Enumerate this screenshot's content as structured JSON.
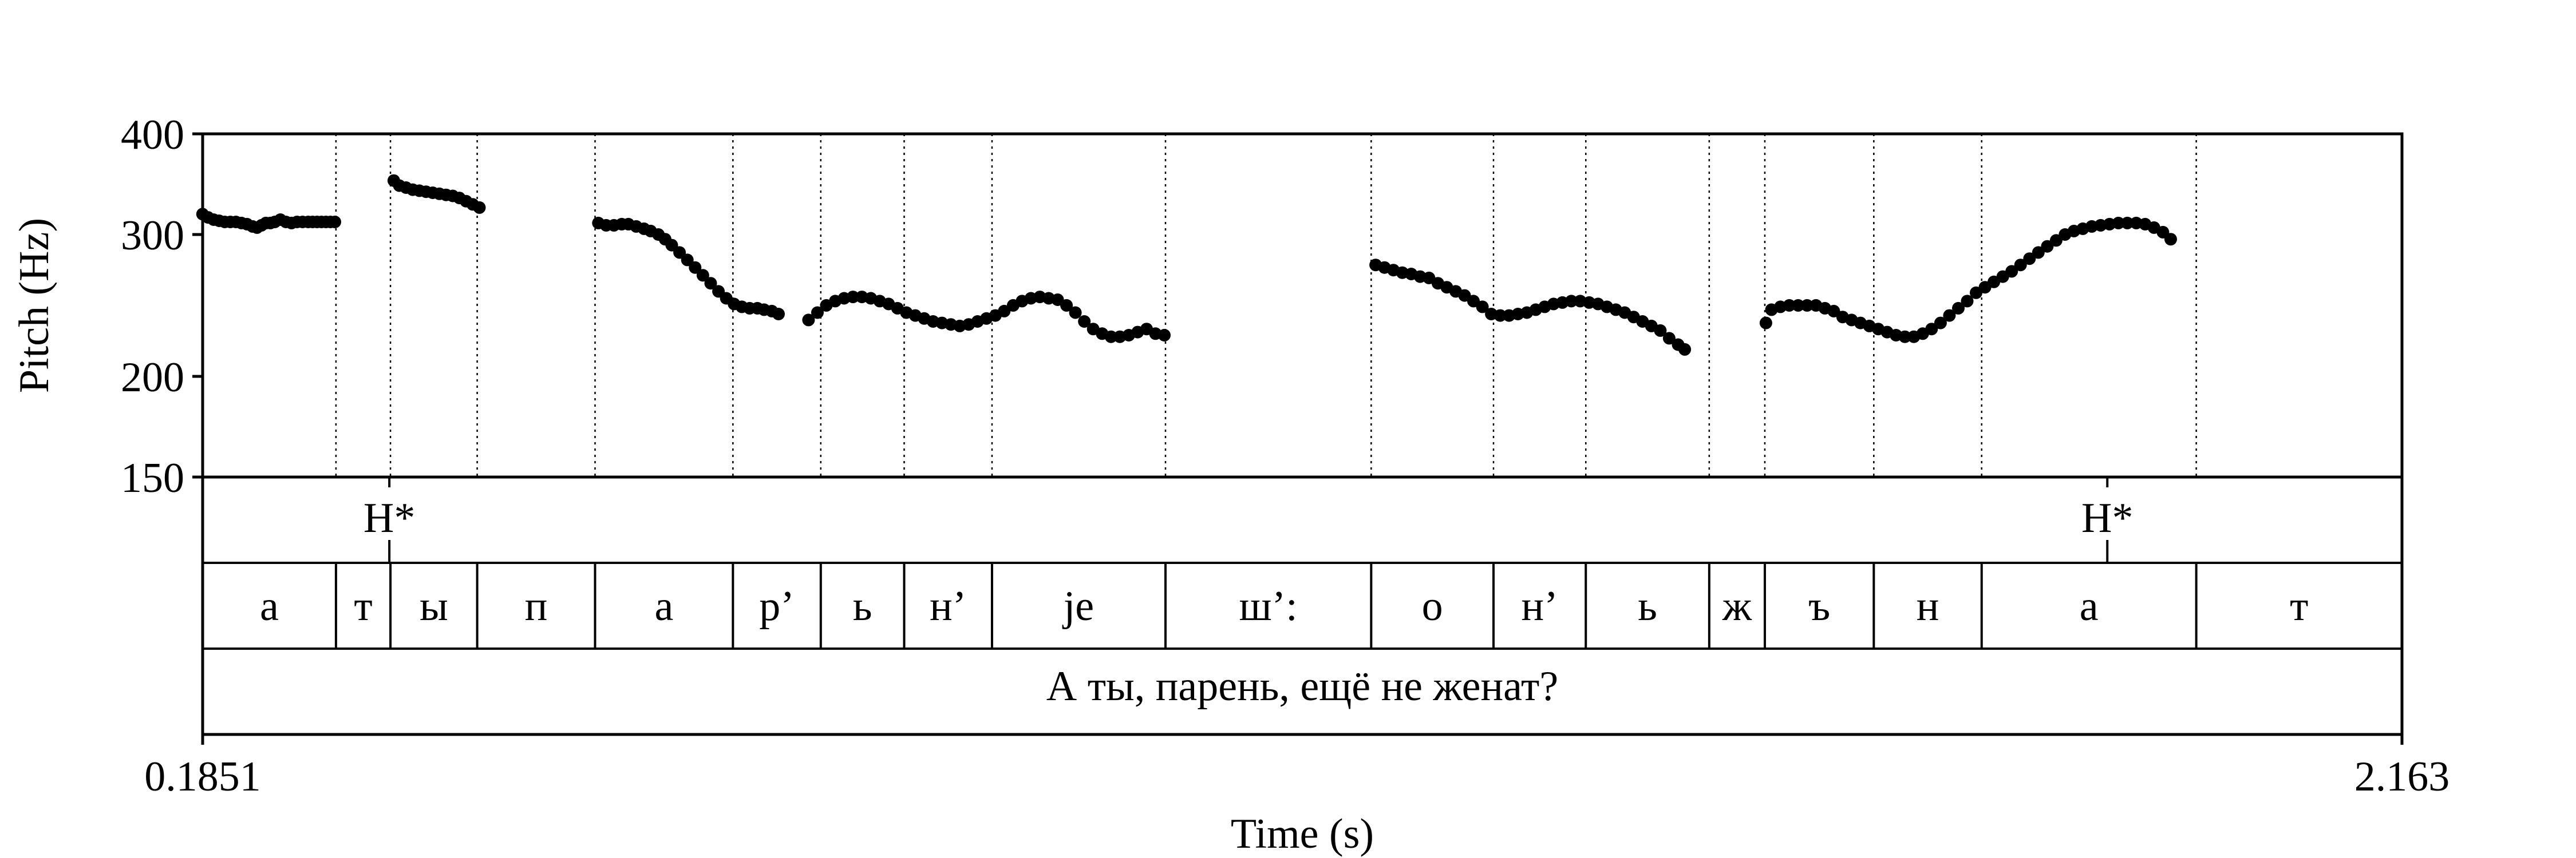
{
  "chart_data": {
    "type": "scatter",
    "title": "",
    "xlabel": "Time (s)",
    "ylabel": "Pitch (Hz)",
    "xlim": [
      0.1851,
      2.163
    ],
    "ylim": [
      150,
      400
    ],
    "y_scale": "log",
    "x_tick_labels": [
      "0.1851",
      "2.163"
    ],
    "y_ticks": [
      150,
      200,
      300,
      400
    ],
    "grid": "vertical dotted lines at segment boundaries",
    "marker_color": "#000000",
    "series": [
      {
        "values": [
          [
            0.185,
            318
          ],
          [
            0.19,
            315
          ],
          [
            0.195,
            313
          ],
          [
            0.2,
            312
          ],
          [
            0.205,
            311
          ],
          [
            0.21,
            311
          ],
          [
            0.215,
            311
          ],
          [
            0.22,
            310
          ],
          [
            0.225,
            309
          ],
          [
            0.23,
            307
          ],
          [
            0.234,
            306
          ],
          [
            0.238,
            308
          ],
          [
            0.242,
            310
          ],
          [
            0.246,
            310
          ],
          [
            0.25,
            311
          ],
          [
            0.255,
            313
          ],
          [
            0.26,
            311
          ],
          [
            0.265,
            310
          ],
          [
            0.27,
            311
          ],
          [
            0.275,
            311
          ],
          [
            0.28,
            311
          ],
          [
            0.284,
            311
          ],
          [
            0.288,
            311
          ],
          [
            0.292,
            311
          ],
          [
            0.296,
            311
          ],
          [
            0.3,
            311
          ],
          [
            0.304,
            311
          ]
        ]
      },
      {
        "values": [
          [
            0.357,
            350
          ],
          [
            0.362,
            345
          ],
          [
            0.368,
            343
          ],
          [
            0.374,
            341
          ],
          [
            0.38,
            340
          ],
          [
            0.386,
            339
          ],
          [
            0.392,
            338
          ],
          [
            0.398,
            337
          ],
          [
            0.404,
            336
          ],
          [
            0.41,
            335
          ],
          [
            0.416,
            333
          ],
          [
            0.422,
            330
          ],
          [
            0.428,
            327
          ],
          [
            0.434,
            324
          ]
        ]
      },
      {
        "values": [
          [
            0.541,
            310
          ],
          [
            0.548,
            308
          ],
          [
            0.555,
            308
          ],
          [
            0.562,
            309
          ],
          [
            0.568,
            309
          ],
          [
            0.575,
            307
          ],
          [
            0.582,
            305
          ],
          [
            0.588,
            303
          ],
          [
            0.595,
            300
          ],
          [
            0.601,
            296
          ],
          [
            0.607,
            291
          ],
          [
            0.614,
            285
          ],
          [
            0.621,
            279
          ],
          [
            0.628,
            273
          ],
          [
            0.635,
            267
          ],
          [
            0.642,
            261
          ],
          [
            0.649,
            255
          ],
          [
            0.656,
            250
          ],
          [
            0.663,
            246
          ],
          [
            0.67,
            244
          ],
          [
            0.677,
            243
          ],
          [
            0.684,
            243
          ],
          [
            0.69,
            242
          ],
          [
            0.697,
            241
          ],
          [
            0.703,
            239
          ]
        ]
      },
      {
        "values": [
          [
            0.73,
            235
          ],
          [
            0.738,
            240
          ],
          [
            0.746,
            245
          ],
          [
            0.754,
            248
          ],
          [
            0.762,
            250
          ],
          [
            0.77,
            251
          ],
          [
            0.778,
            251
          ],
          [
            0.786,
            250
          ],
          [
            0.794,
            248
          ],
          [
            0.802,
            246
          ],
          [
            0.81,
            243
          ],
          [
            0.818,
            240
          ],
          [
            0.826,
            238
          ],
          [
            0.834,
            236
          ],
          [
            0.842,
            234
          ],
          [
            0.85,
            233
          ],
          [
            0.858,
            232
          ],
          [
            0.866,
            231
          ],
          [
            0.874,
            232
          ],
          [
            0.882,
            234
          ],
          [
            0.89,
            236
          ],
          [
            0.898,
            238
          ],
          [
            0.906,
            241
          ],
          [
            0.914,
            245
          ],
          [
            0.922,
            248
          ],
          [
            0.93,
            250
          ],
          [
            0.938,
            251
          ],
          [
            0.946,
            250
          ],
          [
            0.954,
            249
          ],
          [
            0.962,
            245
          ],
          [
            0.97,
            240
          ],
          [
            0.978,
            234
          ],
          [
            0.986,
            229
          ],
          [
            0.994,
            226
          ],
          [
            1.002,
            224
          ],
          [
            1.01,
            224
          ],
          [
            1.018,
            225
          ],
          [
            1.026,
            227
          ],
          [
            1.034,
            229
          ],
          [
            1.042,
            226
          ],
          [
            1.05,
            225
          ]
        ]
      },
      {
        "values": [
          [
            1.24,
            275
          ],
          [
            1.248,
            273
          ],
          [
            1.256,
            271
          ],
          [
            1.264,
            269
          ],
          [
            1.272,
            268
          ],
          [
            1.28,
            266
          ],
          [
            1.288,
            265
          ],
          [
            1.296,
            261
          ],
          [
            1.304,
            258
          ],
          [
            1.312,
            255
          ],
          [
            1.32,
            252
          ],
          [
            1.328,
            248
          ],
          [
            1.336,
            244
          ],
          [
            1.344,
            239
          ],
          [
            1.352,
            238
          ],
          [
            1.36,
            238
          ],
          [
            1.368,
            239
          ],
          [
            1.376,
            240
          ],
          [
            1.384,
            242
          ],
          [
            1.392,
            244
          ],
          [
            1.4,
            246
          ],
          [
            1.408,
            247
          ],
          [
            1.416,
            248
          ],
          [
            1.424,
            248
          ],
          [
            1.432,
            247
          ],
          [
            1.44,
            246
          ],
          [
            1.448,
            244
          ],
          [
            1.456,
            242
          ],
          [
            1.464,
            240
          ],
          [
            1.472,
            237
          ],
          [
            1.48,
            234
          ],
          [
            1.488,
            231
          ],
          [
            1.496,
            228
          ],
          [
            1.504,
            223
          ],
          [
            1.512,
            219
          ],
          [
            1.518,
            216
          ]
        ]
      },
      {
        "values": [
          [
            1.591,
            233
          ],
          [
            1.596,
            242
          ],
          [
            1.604,
            244
          ],
          [
            1.612,
            245
          ],
          [
            1.62,
            245
          ],
          [
            1.628,
            245
          ],
          [
            1.636,
            245
          ],
          [
            1.644,
            243
          ],
          [
            1.652,
            241
          ],
          [
            1.66,
            237
          ],
          [
            1.668,
            235
          ],
          [
            1.676,
            233
          ],
          [
            1.684,
            231
          ],
          [
            1.692,
            229
          ],
          [
            1.7,
            227
          ],
          [
            1.708,
            225
          ],
          [
            1.716,
            224
          ],
          [
            1.724,
            224
          ],
          [
            1.732,
            226
          ],
          [
            1.74,
            229
          ],
          [
            1.748,
            233
          ],
          [
            1.756,
            238
          ],
          [
            1.764,
            243
          ],
          [
            1.772,
            248
          ],
          [
            1.78,
            254
          ],
          [
            1.788,
            258
          ],
          [
            1.796,
            262
          ],
          [
            1.804,
            266
          ],
          [
            1.812,
            270
          ],
          [
            1.82,
            275
          ],
          [
            1.828,
            280
          ],
          [
            1.836,
            285
          ],
          [
            1.844,
            290
          ],
          [
            1.852,
            295
          ],
          [
            1.86,
            300
          ],
          [
            1.868,
            303
          ],
          [
            1.876,
            305
          ],
          [
            1.884,
            307
          ],
          [
            1.892,
            308
          ],
          [
            1.9,
            309
          ],
          [
            1.908,
            310
          ],
          [
            1.916,
            310
          ],
          [
            1.924,
            310
          ],
          [
            1.932,
            309
          ],
          [
            1.94,
            306
          ],
          [
            1.948,
            302
          ],
          [
            1.955,
            296
          ]
        ]
      }
    ],
    "tones": [
      {
        "label": "H*",
        "time": 0.353
      },
      {
        "label": "H*",
        "time": 1.898
      }
    ],
    "segments": [
      {
        "label": "а",
        "start": 0.1851,
        "end": 0.305
      },
      {
        "label": "т",
        "start": 0.305,
        "end": 0.354
      },
      {
        "label": "ы",
        "start": 0.354,
        "end": 0.432
      },
      {
        "label": "п",
        "start": 0.432,
        "end": 0.538
      },
      {
        "label": "а",
        "start": 0.538,
        "end": 0.662
      },
      {
        "label": "р’",
        "start": 0.662,
        "end": 0.741
      },
      {
        "label": "ь",
        "start": 0.741,
        "end": 0.816
      },
      {
        "label": "н’",
        "start": 0.816,
        "end": 0.895
      },
      {
        "label": "je",
        "start": 0.895,
        "end": 1.051
      },
      {
        "label": "ш’:",
        "start": 1.051,
        "end": 1.236
      },
      {
        "label": "о",
        "start": 1.236,
        "end": 1.346
      },
      {
        "label": "н’",
        "start": 1.346,
        "end": 1.429
      },
      {
        "label": "ь",
        "start": 1.429,
        "end": 1.54
      },
      {
        "label": "ж",
        "start": 1.54,
        "end": 1.59
      },
      {
        "label": "ъ",
        "start": 1.59,
        "end": 1.688
      },
      {
        "label": "н",
        "start": 1.688,
        "end": 1.785
      },
      {
        "label": "а",
        "start": 1.785,
        "end": 1.978
      },
      {
        "label": "т",
        "start": 1.978,
        "end": 2.163
      }
    ],
    "sentence": "А ты, парень, ещё не женат?"
  }
}
